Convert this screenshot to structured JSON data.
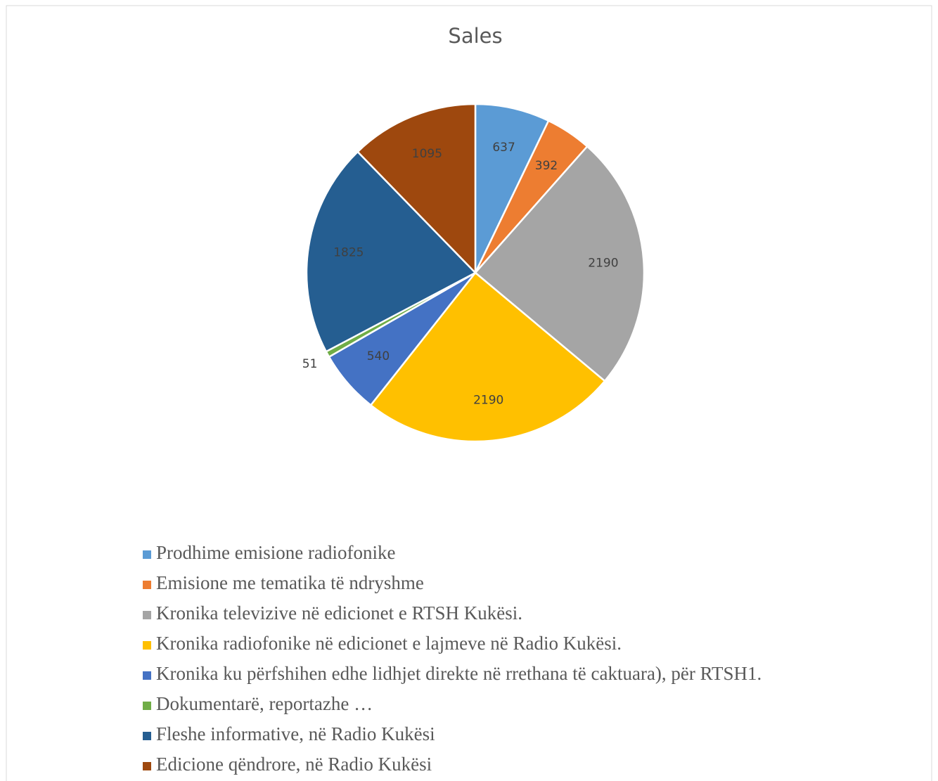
{
  "chart_data": {
    "type": "pie",
    "title": "Sales",
    "categories": [
      "Prodhime emisione radiofonike",
      "Emisione me tematika të ndryshme",
      "Kronika televizive në edicionet e RTSH Kukësi.",
      "Kronika radiofonike në edicionet e lajmeve në Radio Kukësi.",
      "Kronika ku përfshihen edhe lidhjet direkte në rrethana të caktuara), për RTSH1.",
      "Dokumentarë, reportazhe …",
      "Fleshe informative, në Radio Kukësi",
      "Edicione qëndrore, në Radio Kukësi"
    ],
    "values": [
      637,
      392,
      2190,
      2190,
      540,
      51,
      1825,
      1095
    ],
    "colors": [
      "#5b9bd5",
      "#ed7d31",
      "#a5a5a5",
      "#ffc000",
      "#4472c4",
      "#70ad47",
      "#255e91",
      "#9e480e"
    ],
    "legend": "bottom"
  }
}
